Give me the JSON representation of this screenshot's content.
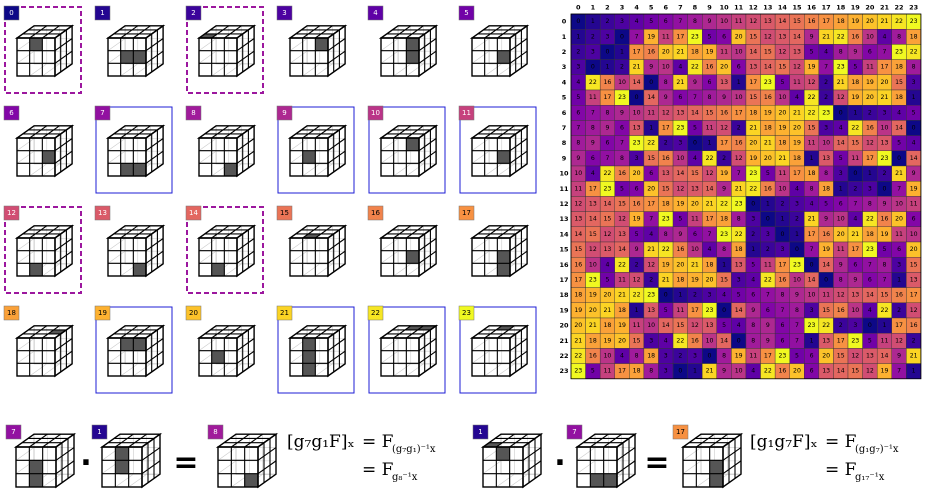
{
  "grid": {
    "labels": [
      "0",
      "1",
      "2",
      "3",
      "4",
      "5",
      "6",
      "7",
      "8",
      "9",
      "10",
      "11",
      "12",
      "13",
      "14",
      "15",
      "16",
      "17",
      "18",
      "19",
      "20",
      "21",
      "22",
      "23"
    ],
    "purple_dashed_frames": [
      0,
      2,
      12,
      14
    ],
    "blue_frames": [
      7,
      9,
      10,
      11,
      19,
      21,
      22,
      23
    ],
    "highlight": [
      [
        [
          0,
          0,
          1,
          1
        ]
      ],
      [
        [
          0,
          1,
          1,
          1
        ],
        [
          0,
          1,
          2,
          1
        ]
      ],
      [
        [
          1,
          0,
          0,
          1
        ]
      ],
      [
        [
          0,
          0,
          2,
          0
        ]
      ],
      [
        [
          0,
          0,
          3,
          2
        ],
        [
          0,
          1,
          3,
          2
        ]
      ],
      [
        [
          0,
          1,
          2,
          0
        ]
      ],
      [
        [
          0,
          1,
          3,
          1
        ]
      ],
      [
        [
          0,
          2,
          2,
          2
        ],
        [
          0,
          2,
          1,
          2
        ]
      ],
      [
        [
          0,
          2,
          2,
          1
        ]
      ],
      [
        [
          0,
          1,
          1,
          1
        ]
      ],
      [
        [
          0,
          0,
          2,
          1
        ]
      ],
      [
        [
          0,
          1,
          3,
          0
        ]
      ],
      [
        [
          0,
          2,
          1,
          2
        ]
      ],
      [
        [
          0,
          2,
          2,
          1
        ]
      ],
      [
        [
          0,
          2,
          1,
          2
        ]
      ],
      [
        [
          1,
          0,
          1,
          1
        ]
      ],
      [
        [
          0,
          1,
          2,
          1
        ]
      ],
      [
        [
          0,
          1,
          2,
          2
        ],
        [
          0,
          2,
          2,
          1
        ]
      ],
      [
        [
          1,
          1,
          2,
          0
        ]
      ],
      [
        [
          0,
          0,
          1,
          0
        ],
        [
          0,
          0,
          2,
          0
        ]
      ],
      [
        [
          0,
          1,
          1,
          2
        ]
      ],
      [
        [
          0,
          0,
          1,
          1
        ],
        [
          0,
          1,
          1,
          1
        ],
        [
          0,
          2,
          1,
          1
        ]
      ],
      [
        [
          1,
          2,
          1,
          1
        ],
        [
          1,
          2,
          2,
          1
        ]
      ],
      [
        [
          1,
          2,
          1,
          2
        ]
      ]
    ]
  },
  "table": {
    "col_labels": [
      "0",
      "1",
      "2",
      "3",
      "4",
      "5",
      "6",
      "7",
      "8",
      "9",
      "10",
      "11",
      "12",
      "13",
      "14",
      "15",
      "16",
      "17",
      "18",
      "19",
      "20",
      "21",
      "22",
      "23"
    ],
    "row_labels": [
      "0",
      "1",
      "2",
      "3",
      "4",
      "5",
      "6",
      "7",
      "8",
      "9",
      "10",
      "11",
      "12",
      "13",
      "14",
      "15",
      "16",
      "17",
      "18",
      "19",
      "20",
      "21",
      "22",
      "23"
    ],
    "colormap": [
      "#0d0887",
      "#3a049a",
      "#5c01a6",
      "#7e03a8",
      "#9c179e",
      "#b52f8c",
      "#cc4778",
      "#de5f65",
      "#ed7953",
      "#f89540",
      "#fdb42f",
      "#fbd524",
      "#f0f921"
    ],
    "cells": [
      [
        0,
        1,
        2,
        3,
        4,
        5,
        6,
        7,
        8,
        9,
        10,
        11,
        12,
        13,
        14,
        15,
        16,
        17,
        18,
        19,
        20,
        21,
        22,
        23
      ],
      [
        1,
        2,
        3,
        0,
        7,
        19,
        11,
        17,
        23,
        5,
        6,
        20,
        15,
        12,
        13,
        14,
        9,
        21,
        22,
        16,
        10,
        4,
        8,
        18
      ],
      [
        2,
        3,
        0,
        1,
        17,
        16,
        20,
        21,
        18,
        19,
        11,
        10,
        14,
        15,
        12,
        13,
        5,
        4,
        8,
        9,
        6,
        7,
        23,
        22
      ],
      [
        3,
        0,
        1,
        2,
        21,
        9,
        10,
        4,
        22,
        16,
        20,
        6,
        13,
        14,
        15,
        12,
        19,
        7,
        23,
        5,
        11,
        17,
        18,
        8
      ],
      [
        4,
        22,
        16,
        10,
        14,
        0,
        8,
        21,
        9,
        6,
        13,
        1,
        17,
        23,
        5,
        11,
        12,
        2,
        21,
        18,
        19,
        20,
        15,
        3
      ],
      [
        5,
        11,
        17,
        23,
        0,
        14,
        9,
        6,
        7,
        8,
        9,
        10,
        15,
        16,
        10,
        4,
        22,
        2,
        12,
        19,
        20,
        21,
        18,
        1
      ],
      [
        6,
        7,
        8,
        9,
        10,
        11,
        12,
        13,
        14,
        15,
        16,
        17,
        18,
        19,
        20,
        21,
        22,
        23,
        0,
        1,
        2,
        3,
        4,
        5
      ],
      [
        7,
        8,
        9,
        6,
        13,
        1,
        17,
        23,
        5,
        11,
        12,
        2,
        21,
        18,
        19,
        20,
        15,
        3,
        4,
        22,
        16,
        10,
        14,
        0
      ],
      [
        8,
        9,
        6,
        7,
        23,
        22,
        2,
        3,
        0,
        1,
        17,
        16,
        20,
        21,
        18,
        19,
        11,
        10,
        14,
        15,
        12,
        13,
        5,
        4
      ],
      [
        9,
        6,
        7,
        8,
        3,
        15,
        16,
        10,
        4,
        22,
        2,
        12,
        19,
        20,
        21,
        18,
        1,
        13,
        5,
        11,
        17,
        23,
        0,
        14
      ],
      [
        10,
        4,
        22,
        16,
        20,
        6,
        13,
        14,
        15,
        12,
        19,
        7,
        23,
        5,
        11,
        17,
        18,
        8,
        3,
        0,
        1,
        2,
        21,
        9
      ],
      [
        11,
        17,
        23,
        5,
        6,
        20,
        15,
        12,
        13,
        14,
        9,
        21,
        22,
        16,
        10,
        4,
        8,
        18,
        1,
        2,
        3,
        0,
        7,
        19
      ],
      [
        12,
        13,
        14,
        15,
        16,
        17,
        18,
        19,
        20,
        21,
        22,
        23,
        0,
        1,
        2,
        3,
        4,
        5,
        6,
        7,
        8,
        9,
        10,
        11
      ],
      [
        13,
        14,
        15,
        12,
        19,
        7,
        23,
        5,
        11,
        17,
        18,
        8,
        3,
        0,
        1,
        2,
        21,
        9,
        10,
        4,
        22,
        16,
        20,
        6
      ],
      [
        14,
        15,
        12,
        13,
        5,
        4,
        8,
        9,
        6,
        7,
        23,
        22,
        2,
        3,
        0,
        1,
        17,
        16,
        20,
        21,
        18,
        19,
        11,
        10
      ],
      [
        15,
        12,
        13,
        14,
        9,
        21,
        22,
        16,
        10,
        4,
        8,
        18,
        1,
        2,
        3,
        0,
        7,
        19,
        11,
        17,
        23,
        5,
        6,
        20
      ],
      [
        16,
        10,
        4,
        22,
        2,
        12,
        19,
        20,
        21,
        18,
        1,
        13,
        5,
        11,
        17,
        23,
        0,
        14,
        9,
        6,
        7,
        8,
        3,
        15
      ],
      [
        17,
        23,
        5,
        11,
        12,
        2,
        21,
        18,
        19,
        20,
        15,
        3,
        4,
        22,
        16,
        10,
        14,
        0,
        8,
        9,
        6,
        7,
        1,
        13
      ],
      [
        18,
        19,
        20,
        21,
        22,
        23,
        0,
        1,
        2,
        3,
        4,
        5,
        6,
        7,
        8,
        9,
        10,
        11,
        12,
        13,
        14,
        15,
        16,
        17
      ],
      [
        19,
        20,
        21,
        18,
        1,
        13,
        5,
        11,
        17,
        23,
        0,
        14,
        9,
        6,
        7,
        8,
        3,
        15,
        16,
        10,
        4,
        22,
        2,
        12
      ],
      [
        20,
        21,
        18,
        19,
        11,
        10,
        14,
        15,
        12,
        13,
        5,
        4,
        8,
        9,
        6,
        7,
        23,
        22,
        2,
        3,
        0,
        1,
        17,
        16
      ],
      [
        21,
        18,
        19,
        20,
        15,
        3,
        4,
        22,
        16,
        10,
        14,
        0,
        8,
        9,
        6,
        7,
        1,
        13,
        17,
        23,
        5,
        11,
        12,
        2
      ],
      [
        22,
        16,
        10,
        4,
        8,
        18,
        3,
        2,
        3,
        0,
        8,
        19,
        11,
        17,
        23,
        5,
        6,
        20,
        15,
        12,
        13,
        14,
        9,
        21
      ],
      [
        23,
        5,
        11,
        17,
        18,
        8,
        3,
        0,
        1,
        21,
        9,
        10,
        4,
        22,
        16,
        20,
        6,
        13,
        14,
        15,
        12,
        19,
        7,
        1
      ]
    ]
  },
  "equations": {
    "left": {
      "badges": [
        "7",
        "1",
        "8"
      ],
      "lhs": "[g₇g₁F]ₓ",
      "rhs1": "= F",
      "rhs1_sub": "(g₇g₁)⁻¹x",
      "rhs2": "= F",
      "rhs2_sub": "g₈⁻¹x"
    },
    "right": {
      "badges": [
        "1",
        "7",
        "17"
      ],
      "lhs": "[g₁g₇F]ₓ",
      "rhs1": "= F",
      "rhs1_sub": "(g₁g₇)⁻¹x",
      "rhs2": "= F",
      "rhs2_sub": "g₁₇⁻¹x"
    },
    "operators": [
      "·",
      "=",
      "·",
      "="
    ]
  }
}
